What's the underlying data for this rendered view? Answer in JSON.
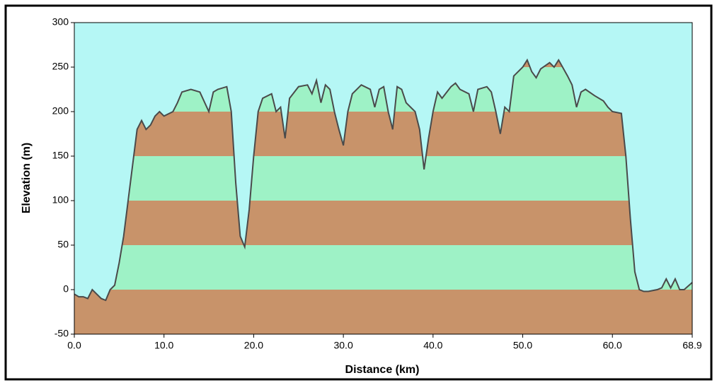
{
  "chart_data": {
    "type": "area",
    "x_label": "Distance   (km)",
    "y_label": "Elevation (m)",
    "x": [
      0,
      0.5,
      1,
      1.5,
      2,
      2.5,
      3,
      3.5,
      4,
      4.5,
      5,
      5.5,
      6,
      6.5,
      7,
      7.5,
      8,
      8.5,
      9,
      9.5,
      10,
      11,
      11.5,
      12,
      13,
      14,
      15,
      15.5,
      16,
      17,
      17.5,
      18,
      18.5,
      19,
      19.5,
      20,
      20.5,
      21,
      22,
      22.5,
      23,
      23.5,
      24,
      25,
      26,
      26.5,
      27,
      27.5,
      28,
      28.5,
      29,
      29.5,
      30,
      30.5,
      31,
      32,
      33,
      33.5,
      34,
      34.5,
      35,
      35.5,
      36,
      36.5,
      37,
      38,
      38.5,
      39,
      39.5,
      40,
      40.5,
      41,
      42,
      42.5,
      43,
      44,
      44.5,
      45,
      46,
      46.5,
      47,
      47.5,
      48,
      48.5,
      49,
      50,
      50.5,
      51,
      51.5,
      52,
      53,
      53.5,
      54,
      55,
      55.5,
      56,
      56.5,
      57,
      58,
      59,
      59.5,
      60,
      61,
      61.5,
      62,
      62.5,
      63,
      63.5,
      64,
      65,
      65.5,
      66,
      66.5,
      67,
      67.5,
      68,
      68.9
    ],
    "values": [
      -5,
      -8,
      -8,
      -10,
      0,
      -5,
      -10,
      -12,
      0,
      5,
      30,
      60,
      100,
      140,
      180,
      190,
      180,
      185,
      195,
      200,
      195,
      200,
      210,
      222,
      225,
      222,
      200,
      222,
      225,
      228,
      200,
      120,
      60,
      48,
      90,
      150,
      200,
      215,
      220,
      200,
      205,
      170,
      215,
      228,
      230,
      220,
      235,
      210,
      230,
      225,
      200,
      180,
      162,
      200,
      220,
      230,
      225,
      205,
      225,
      228,
      200,
      180,
      228,
      225,
      210,
      200,
      180,
      135,
      170,
      200,
      222,
      215,
      228,
      232,
      225,
      220,
      200,
      225,
      228,
      222,
      200,
      175,
      205,
      200,
      240,
      250,
      258,
      245,
      238,
      248,
      255,
      250,
      258,
      240,
      230,
      205,
      222,
      225,
      218,
      212,
      205,
      200,
      198,
      150,
      80,
      20,
      0,
      -2,
      -2,
      0,
      2,
      12,
      2,
      12,
      0,
      0,
      8
    ],
    "line_color": "#4a4a4a",
    "sky_color": "#b5f7f5",
    "band_colors": [
      "#c8936a",
      "#9ef2c6"
    ],
    "xlim": [
      0,
      68.9
    ],
    "ylim": [
      -50,
      300
    ],
    "xticks": [
      {
        "value": 0,
        "label": "0.0"
      },
      {
        "value": 10,
        "label": "10.0"
      },
      {
        "value": 20,
        "label": "20.0"
      },
      {
        "value": 30,
        "label": "30.0"
      },
      {
        "value": 40,
        "label": "40.0"
      },
      {
        "value": 50,
        "label": "50.0"
      },
      {
        "value": 60,
        "label": "60.0"
      },
      {
        "value": 68.9,
        "label": "68.9"
      }
    ],
    "yticks": [
      -50,
      0,
      50,
      100,
      150,
      200,
      250,
      300
    ]
  }
}
